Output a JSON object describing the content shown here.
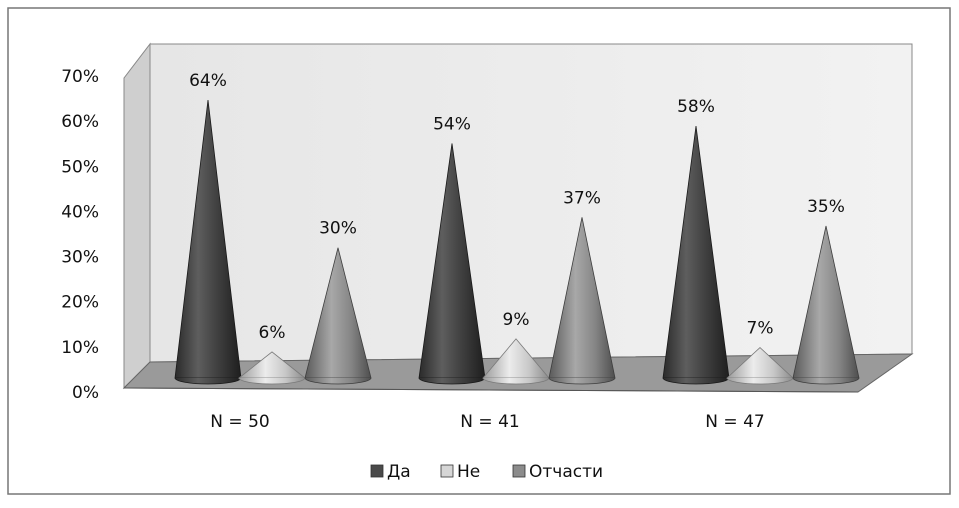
{
  "chart_data": {
    "type": "bar",
    "style": "3d-cone",
    "categories": [
      "N = 50",
      "N = 41",
      "N = 47"
    ],
    "series": [
      {
        "name": "Да",
        "values": [
          64,
          54,
          58
        ],
        "labels": [
          "64%",
          "54%",
          "58%"
        ],
        "color": "#4a4a4a"
      },
      {
        "name": "Не",
        "values": [
          6,
          9,
          7
        ],
        "labels": [
          "6%",
          "9%",
          "7%"
        ],
        "color": "#d6d6d6"
      },
      {
        "name": "Отчасти",
        "values": [
          30,
          37,
          35
        ],
        "labels": [
          "30%",
          "37%",
          "35%"
        ],
        "color": "#8c8c8c"
      }
    ],
    "ylim": [
      0,
      70
    ],
    "yticks": [
      "0%",
      "10%",
      "20%",
      "30%",
      "40%",
      "50%",
      "60%",
      "70%"
    ],
    "legend_position": "bottom",
    "grid": false
  }
}
